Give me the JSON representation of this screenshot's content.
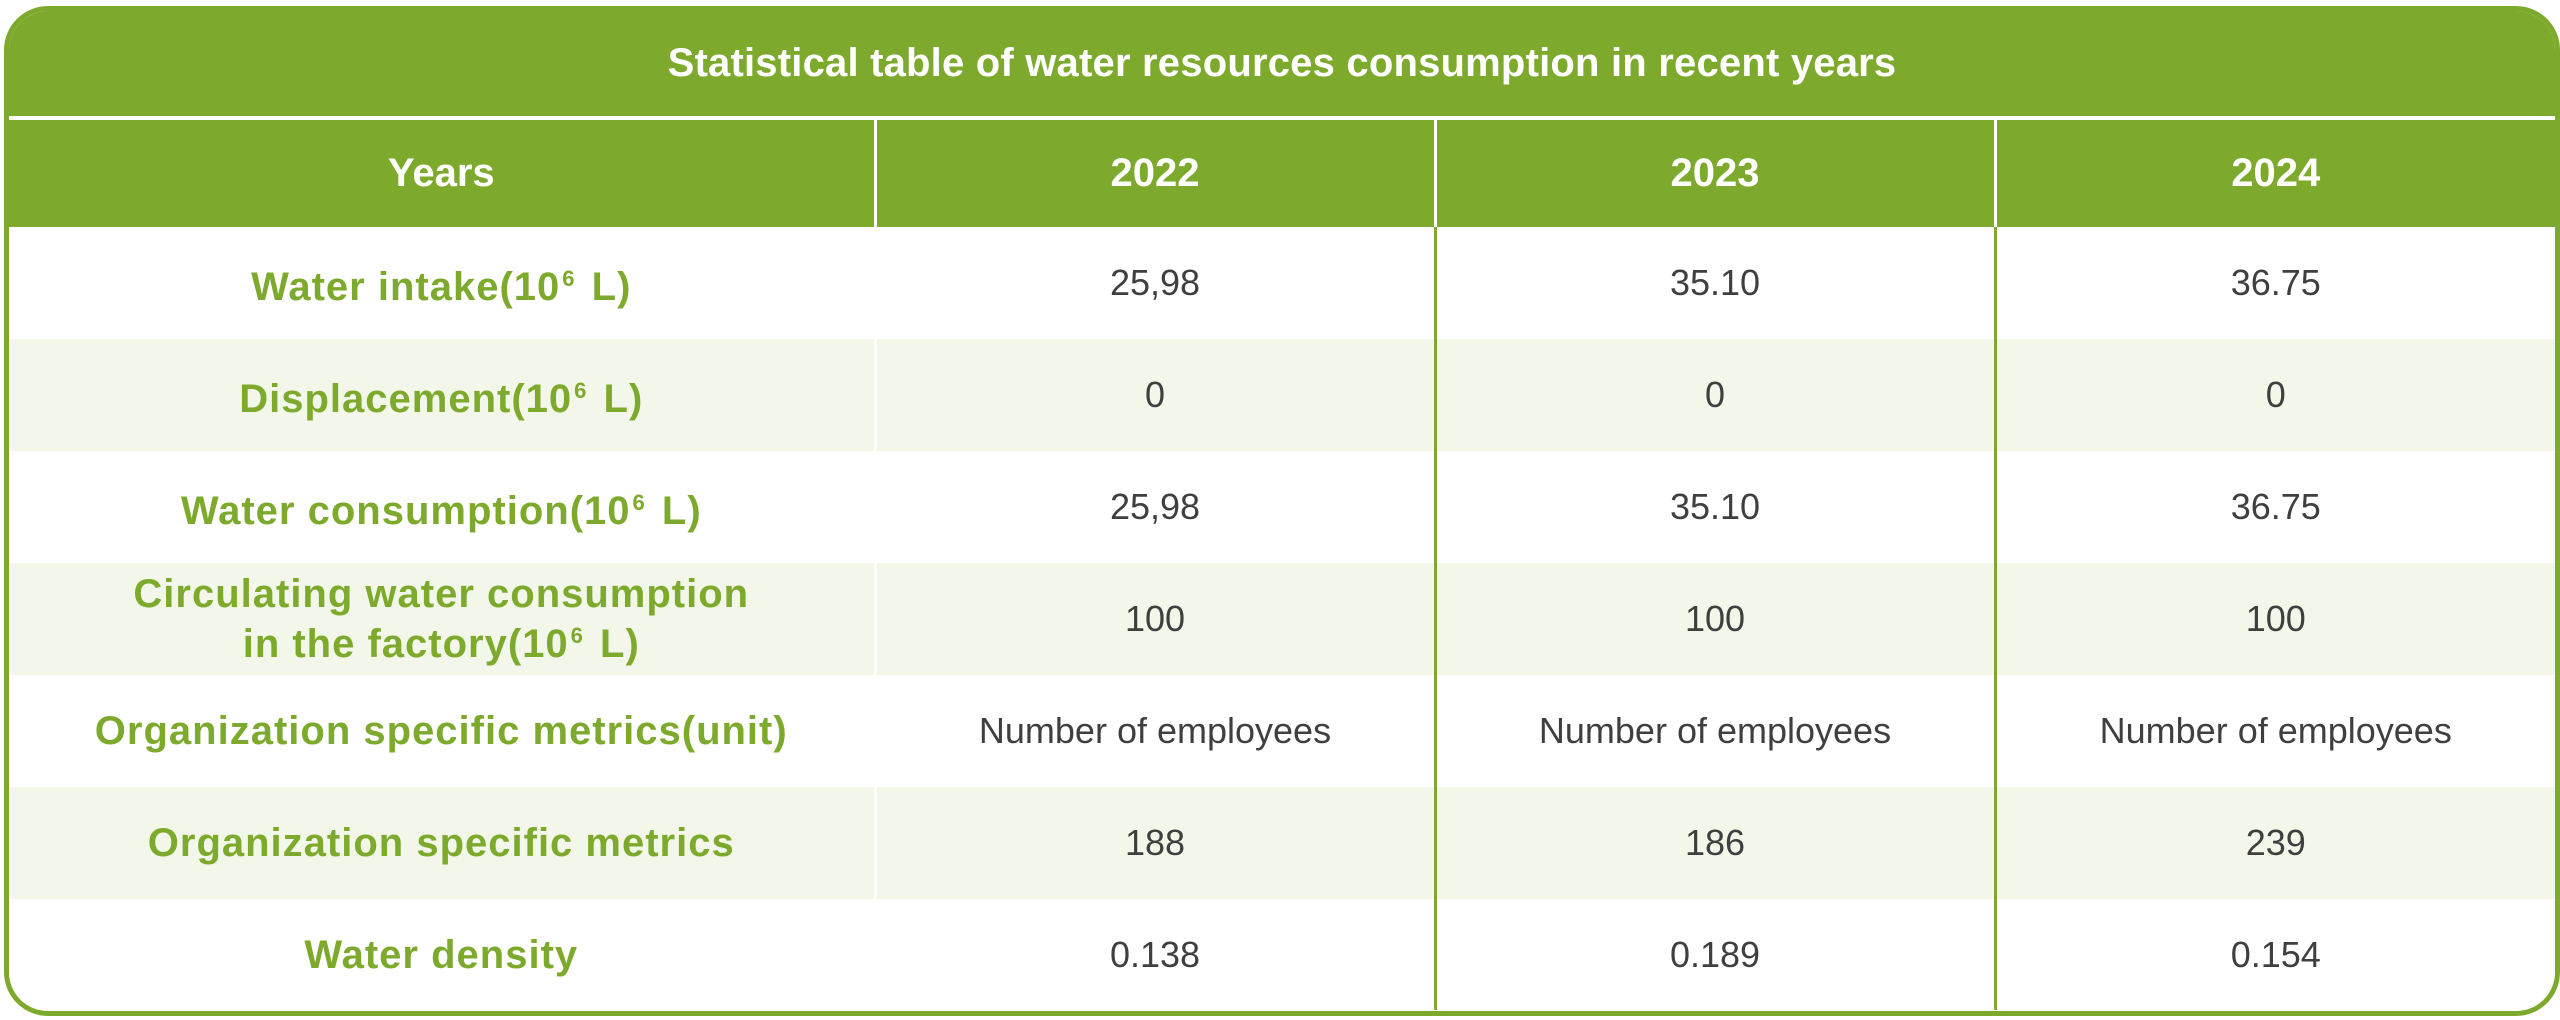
{
  "title": "Statistical table of water resources consumption in recent years",
  "header": {
    "label": "Years",
    "years": [
      "2022",
      "2023",
      "2024"
    ]
  },
  "rows": [
    {
      "label_pre": "Water intake(10",
      "sup": "6",
      "label_post": " L)",
      "values": [
        "25,98",
        "35.10",
        "36.75"
      ]
    },
    {
      "label_pre": "Displacement(10",
      "sup": "6",
      "label_post": " L)",
      "values": [
        "0",
        "0",
        "0"
      ]
    },
    {
      "label_pre": "Water consumption(10",
      "sup": "6",
      "label_post": " L)",
      "values": [
        "25,98",
        "35.10",
        "36.75"
      ]
    },
    {
      "label_line1": "Circulating water consumption",
      "label_pre": "in the factory(10",
      "sup": "6",
      "label_post": " L)",
      "values": [
        "100",
        "100",
        "100"
      ]
    },
    {
      "label": "Organization specific metrics(unit)",
      "values": [
        "Number of employees",
        "Number of employees",
        "Number of employees"
      ]
    },
    {
      "label": "Organization specific metrics",
      "values": [
        "188",
        "186",
        "239"
      ]
    },
    {
      "label": "Water density",
      "values": [
        "0.138",
        "0.189",
        "0.154"
      ]
    }
  ],
  "colors": {
    "accent": "#7daa2d",
    "stripe": "#f3f7ea",
    "value_text": "#3f3f3f"
  }
}
